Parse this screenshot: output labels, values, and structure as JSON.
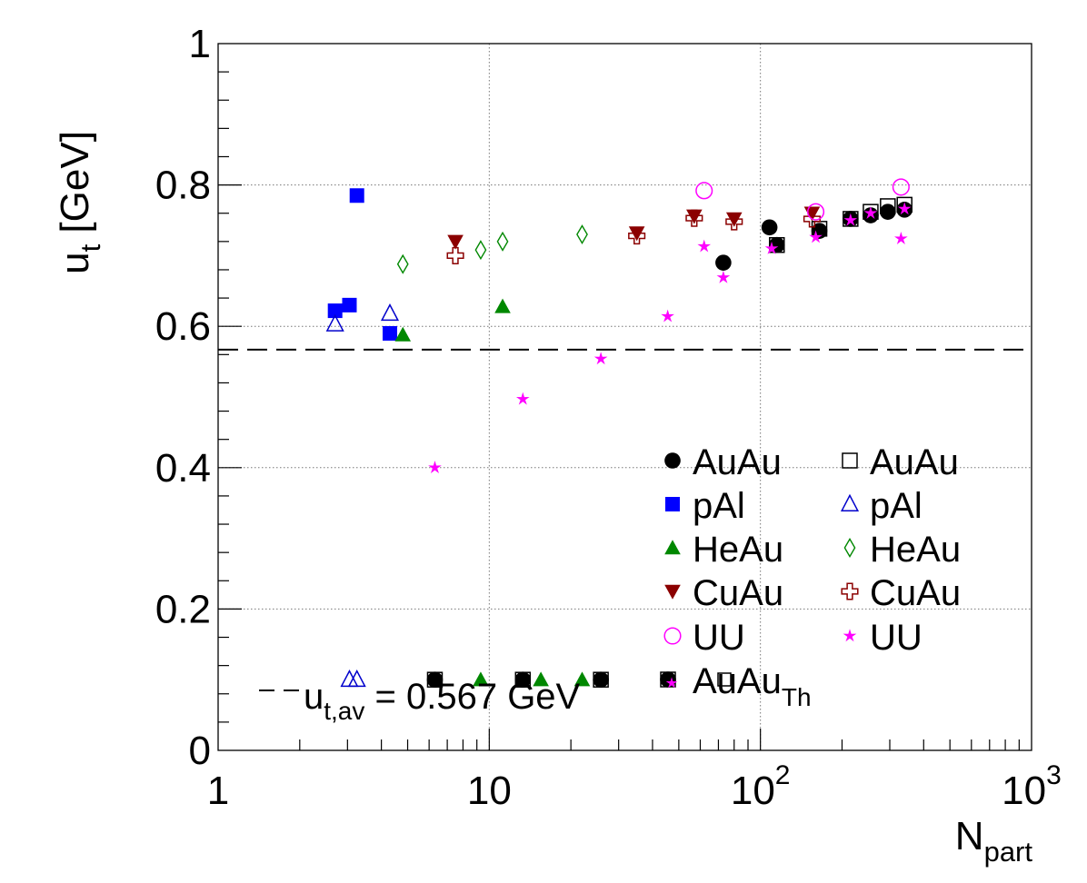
{
  "chart_data": {
    "type": "scatter",
    "xscale": "log",
    "xlim": [
      1,
      1000
    ],
    "ylim": [
      0,
      1
    ],
    "grid": true,
    "xlabel": "N",
    "xlabel_sub": "part",
    "ylabel": "u",
    "ylabel_sub": "t",
    "ylabel_suffix": " [GeV]",
    "xticks": [
      {
        "value": 1,
        "base": "1",
        "exp": ""
      },
      {
        "value": 10,
        "base": "10",
        "exp": ""
      },
      {
        "value": 100,
        "base": "10",
        "exp": "2"
      },
      {
        "value": 1000,
        "base": "10",
        "exp": "3"
      }
    ],
    "yticks": [
      {
        "value": 0,
        "label": "0"
      },
      {
        "value": 0.2,
        "label": "0.2"
      },
      {
        "value": 0.4,
        "label": "0.4"
      },
      {
        "value": 0.6,
        "label": "0.6"
      },
      {
        "value": 0.8,
        "label": "0.8"
      },
      {
        "value": 1,
        "label": "1"
      }
    ],
    "reference_line": {
      "y": 0.567,
      "label_main": "u",
      "label_sub": "t,av",
      "label_rest": " = 0.567 GeV"
    },
    "series": [
      {
        "name": "AuAu",
        "marker": "circle-filled",
        "color": "#000000",
        "points": [
          [
            73,
            0.69
          ],
          [
            108,
            0.74
          ],
          [
            115,
            0.715
          ],
          [
            165,
            0.735
          ],
          [
            215,
            0.752
          ],
          [
            255,
            0.757
          ],
          [
            295,
            0.762
          ],
          [
            340,
            0.765
          ]
        ]
      },
      {
        "name": "AuAu",
        "marker": "square-open",
        "color": "#000000",
        "points": [
          [
            115,
            0.715
          ],
          [
            165,
            0.738
          ],
          [
            215,
            0.752
          ],
          [
            255,
            0.762
          ],
          [
            295,
            0.77
          ],
          [
            340,
            0.772
          ]
        ]
      },
      {
        "name": "pAl",
        "marker": "square-filled",
        "color": "#0000ff",
        "points": [
          [
            2.7,
            0.622
          ],
          [
            3.05,
            0.63
          ],
          [
            3.25,
            0.785
          ],
          [
            4.3,
            0.59
          ]
        ]
      },
      {
        "name": "pAl",
        "marker": "triangle-open",
        "color": "#0000cc",
        "points": [
          [
            2.7,
            0.603
          ],
          [
            4.3,
            0.618
          ]
        ]
      },
      {
        "name": "HeAu",
        "marker": "triangle-filled",
        "color": "#008800",
        "points": [
          [
            4.8,
            0.588
          ],
          [
            11.2,
            0.628
          ]
        ]
      },
      {
        "name": "HeAu",
        "marker": "diamond-open",
        "color": "#008800",
        "points": [
          [
            4.8,
            0.688
          ],
          [
            9.3,
            0.708
          ],
          [
            11.2,
            0.72
          ],
          [
            22,
            0.73
          ]
        ]
      },
      {
        "name": "CuAu",
        "marker": "triangle-down-filled",
        "color": "#8b0000",
        "points": [
          [
            7.5,
            0.72
          ],
          [
            35,
            0.732
          ],
          [
            57,
            0.756
          ],
          [
            80,
            0.752
          ],
          [
            155,
            0.76
          ]
        ]
      },
      {
        "name": "CuAu",
        "marker": "cross-open",
        "color": "#8b0000",
        "points": [
          [
            7.5,
            0.7
          ],
          [
            35,
            0.728
          ],
          [
            57,
            0.753
          ],
          [
            80,
            0.748
          ],
          [
            155,
            0.752
          ]
        ]
      },
      {
        "name": "UU",
        "marker": "circle-open",
        "color": "#ff00ff",
        "points": [
          [
            62,
            0.792
          ],
          [
            160,
            0.762
          ],
          [
            330,
            0.797
          ]
        ]
      },
      {
        "name": "UU",
        "marker": "star",
        "color": "#ff00ff",
        "points": [
          [
            6.3,
            0.4
          ],
          [
            13.3,
            0.497
          ],
          [
            25.8,
            0.554
          ],
          [
            45.5,
            0.614
          ],
          [
            62,
            0.713
          ],
          [
            73,
            0.669
          ],
          [
            110,
            0.71
          ],
          [
            160,
            0.726
          ],
          [
            215,
            0.75
          ],
          [
            255,
            0.76
          ],
          [
            340,
            0.766
          ],
          [
            330,
            0.724
          ]
        ]
      }
    ],
    "annotation_markers": [
      {
        "marker": "triangle-open",
        "color": "#0000cc",
        "x": 3.05,
        "y": 0.1
      },
      {
        "marker": "triangle-open",
        "color": "#0000cc",
        "x": 3.25,
        "y": 0.1
      },
      {
        "marker": "circle-filled",
        "color": "#000000",
        "x": 6.3,
        "y": 0.1
      },
      {
        "marker": "square-open",
        "color": "#000000",
        "x": 6.3,
        "y": 0.1
      },
      {
        "marker": "triangle-filled",
        "color": "#008800",
        "x": 9.3,
        "y": 0.1
      },
      {
        "marker": "circle-filled",
        "color": "#000000",
        "x": 13.3,
        "y": 0.1
      },
      {
        "marker": "square-open",
        "color": "#000000",
        "x": 13.3,
        "y": 0.1
      },
      {
        "marker": "triangle-filled",
        "color": "#008800",
        "x": 15.5,
        "y": 0.1
      },
      {
        "marker": "triangle-filled",
        "color": "#008800",
        "x": 22,
        "y": 0.1
      },
      {
        "marker": "circle-filled",
        "color": "#000000",
        "x": 25.8,
        "y": 0.1
      },
      {
        "marker": "square-open",
        "color": "#000000",
        "x": 25.8,
        "y": 0.1
      }
    ],
    "legend": {
      "placement": "lower-right",
      "entries": [
        {
          "label": "AuAu",
          "marker": "circle-filled",
          "color": "#000000"
        },
        {
          "label": "AuAu",
          "marker": "square-open",
          "color": "#000000"
        },
        {
          "label": "pAl",
          "marker": "square-filled",
          "color": "#0000ff"
        },
        {
          "label": "pAl",
          "marker": "triangle-open",
          "color": "#0000cc"
        },
        {
          "label": "HeAu",
          "marker": "triangle-filled",
          "color": "#008800"
        },
        {
          "label": "HeAu",
          "marker": "diamond-open",
          "color": "#008800"
        },
        {
          "label": "CuAu",
          "marker": "triangle-down-filled",
          "color": "#8b0000"
        },
        {
          "label": "CuAu",
          "marker": "cross-open",
          "color": "#8b0000"
        },
        {
          "label": "UU",
          "marker": "circle-open",
          "color": "#ff00ff"
        },
        {
          "label": "UU",
          "marker": "star",
          "color": "#ff00ff"
        }
      ],
      "theory_entry": {
        "label_main": "AuAu",
        "label_sub": "Th"
      }
    }
  }
}
